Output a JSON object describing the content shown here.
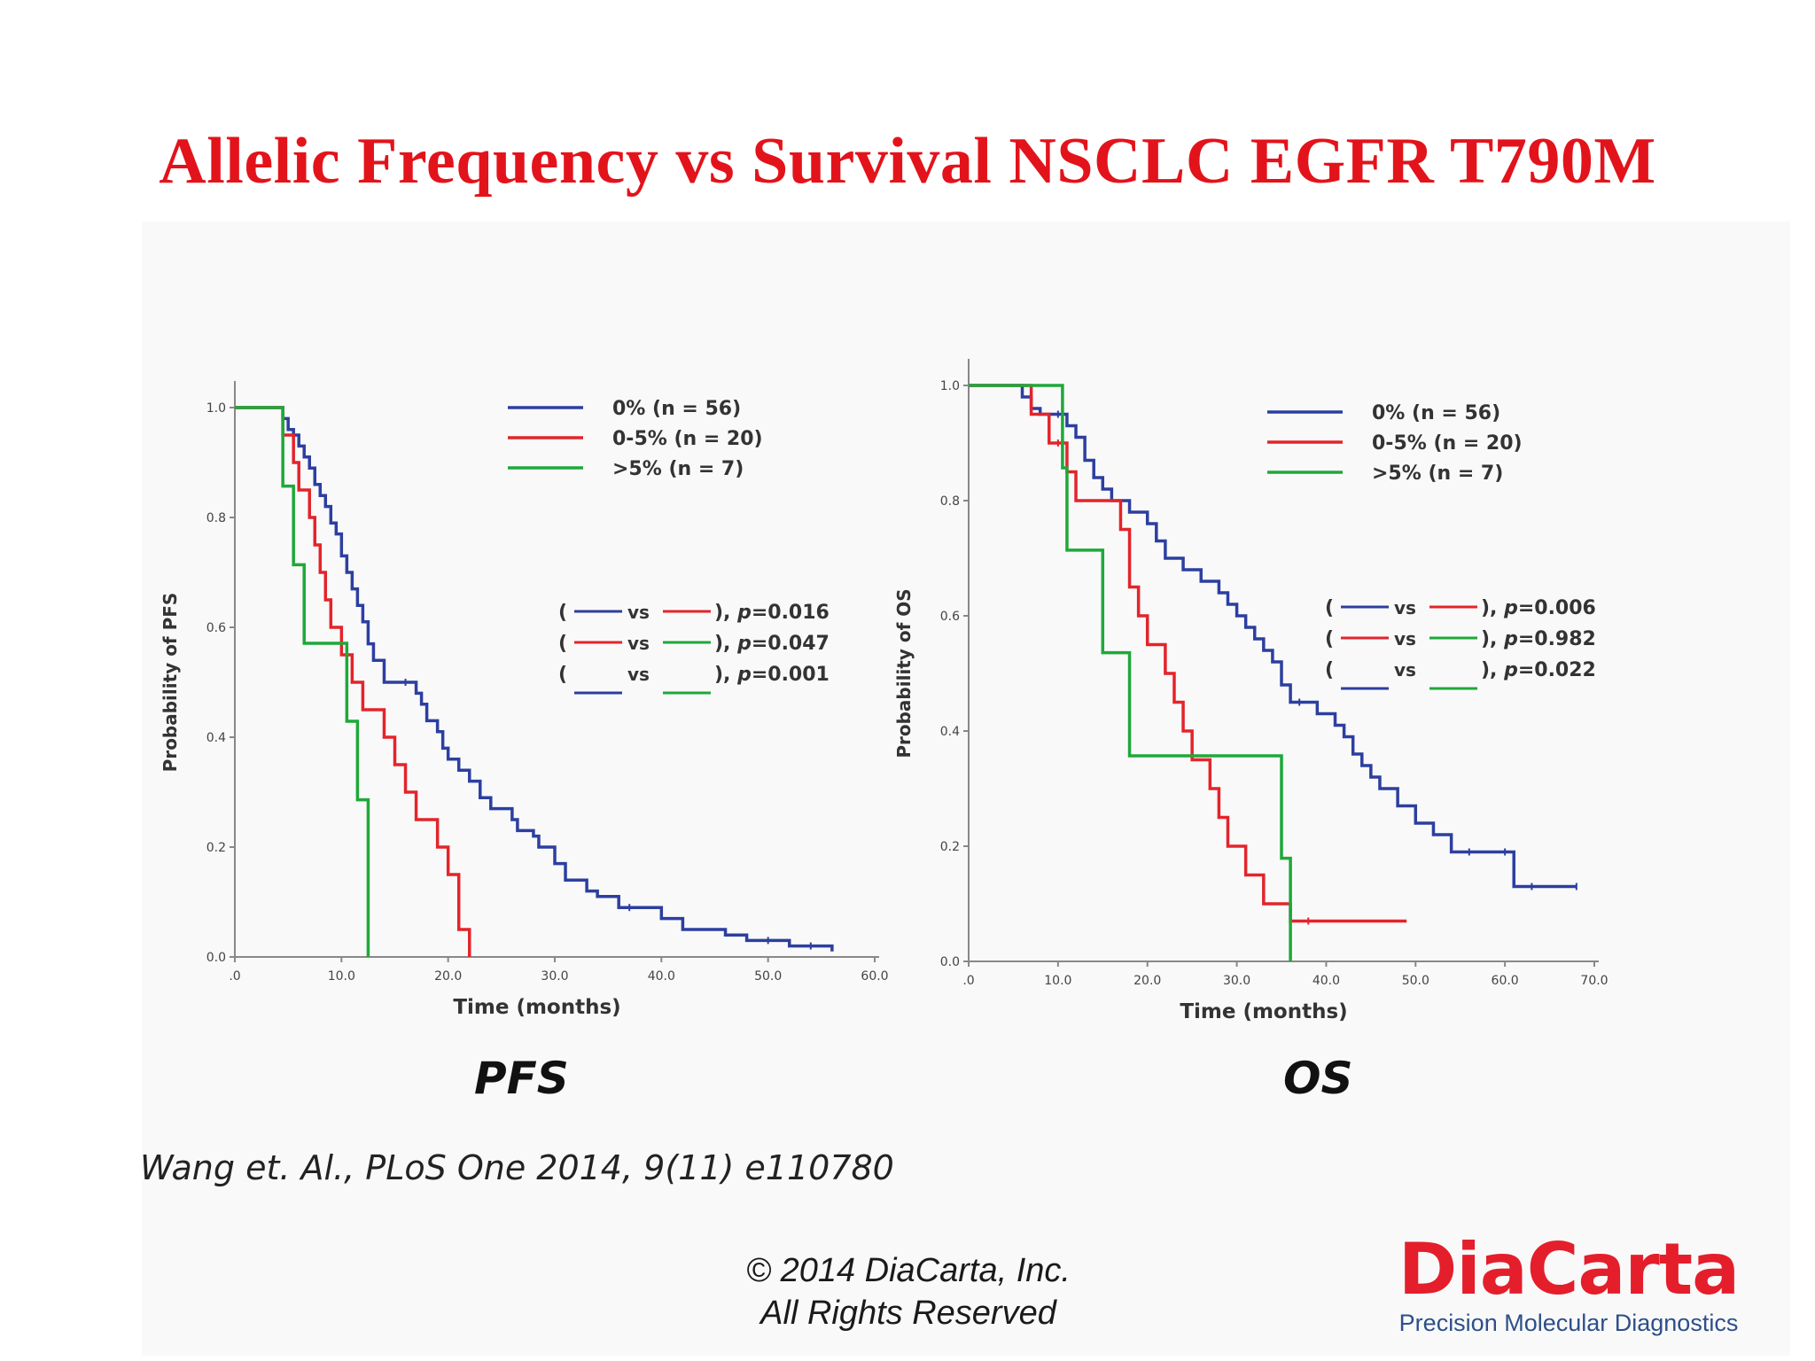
{
  "title": "Allelic Frequency vs Survival NSCLC EGFR T790M",
  "colors": {
    "title": "#e3131b",
    "blue": "#2c3fa0",
    "red": "#e3242b",
    "green": "#1fa83a",
    "logo_red": "#e41e2b",
    "logo_blue": "#2d4f8a"
  },
  "captions": {
    "pfs": "PFS",
    "os": "OS"
  },
  "citation": "Wang et. Al., PLoS One 2014, 9(11) e110780",
  "copyright": {
    "line1": "© 2014 DiaCarta, Inc.",
    "line2": "All Rights Reserved"
  },
  "logo": {
    "name": "DiaCarta",
    "tagline": "Precision Molecular Diagnostics"
  },
  "chart_data": [
    {
      "type": "line",
      "name": "PFS",
      "xlabel": "Time (months)",
      "ylabel": "Probability of PFS",
      "xlim": [
        0,
        60
      ],
      "ylim": [
        0,
        1
      ],
      "xticks": [
        ".0",
        "10.0",
        "20.0",
        "30.0",
        "40.0",
        "50.0",
        "60.0"
      ],
      "yticks": [
        "0.0",
        "0.2",
        "0.4",
        "0.6",
        "0.8",
        "1.0"
      ],
      "legend": [
        "0% (n = 56)",
        "0-5% (n = 20)",
        ">5% (n = 7)"
      ],
      "comparisons": [
        {
          "a": "blue",
          "b": "red",
          "p": "0.016"
        },
        {
          "a": "red",
          "b": "green",
          "p": "0.047"
        },
        {
          "a": "blue",
          "b": "green",
          "p": "0.001"
        }
      ],
      "series": [
        {
          "name": "0% (n = 56)",
          "color": "blue",
          "x": [
            0,
            4,
            4.5,
            5,
            5.5,
            6,
            6.5,
            7,
            7.5,
            8,
            8.5,
            9,
            9.5,
            10,
            10.5,
            11,
            11.5,
            12,
            12.5,
            13,
            14,
            15,
            16,
            17,
            17.5,
            18,
            19,
            19.5,
            20,
            21,
            22,
            23,
            24,
            26,
            26.5,
            28,
            28.5,
            30,
            31,
            33,
            34,
            36,
            37,
            40,
            42,
            44,
            46,
            48,
            50,
            52,
            54,
            56
          ],
          "y": [
            1,
            1,
            0.98,
            0.96,
            0.95,
            0.93,
            0.91,
            0.89,
            0.86,
            0.84,
            0.82,
            0.79,
            0.77,
            0.73,
            0.7,
            0.67,
            0.64,
            0.61,
            0.57,
            0.54,
            0.5,
            0.5,
            0.5,
            0.48,
            0.46,
            0.43,
            0.41,
            0.38,
            0.36,
            0.34,
            0.32,
            0.29,
            0.27,
            0.25,
            0.23,
            0.22,
            0.2,
            0.17,
            0.14,
            0.12,
            0.11,
            0.09,
            0.09,
            0.07,
            0.05,
            0.05,
            0.04,
            0.03,
            0.03,
            0.02,
            0.02,
            0.01
          ]
        },
        {
          "name": "0-5% (n = 20)",
          "color": "red",
          "x": [
            0,
            3.5,
            4.5,
            5.5,
            6,
            7,
            7.5,
            8,
            8.5,
            9,
            10,
            11,
            12,
            14,
            15,
            16,
            17,
            19,
            20,
            21,
            22
          ],
          "y": [
            1,
            1,
            0.95,
            0.9,
            0.85,
            0.8,
            0.75,
            0.7,
            0.65,
            0.6,
            0.55,
            0.5,
            0.45,
            0.4,
            0.35,
            0.3,
            0.25,
            0.2,
            0.15,
            0.05,
            0
          ]
        },
        {
          "name": ">5% (n = 7)",
          "color": "green",
          "x": [
            0,
            3.5,
            4.5,
            5.5,
            6.5,
            10.5,
            11.5,
            12.5
          ],
          "y": [
            1,
            1,
            0.857,
            0.714,
            0.571,
            0.429,
            0.286,
            0
          ]
        }
      ]
    },
    {
      "type": "line",
      "name": "OS",
      "xlabel": "Time (months)",
      "ylabel": "Probability of OS",
      "xlim": [
        0,
        70
      ],
      "ylim": [
        0,
        1
      ],
      "xticks": [
        ".0",
        "10.0",
        "20.0",
        "30.0",
        "40.0",
        "50.0",
        "60.0",
        "70.0"
      ],
      "yticks": [
        "0.0",
        "0.2",
        "0.4",
        "0.6",
        "0.8",
        "1.0"
      ],
      "legend": [
        "0% (n = 56)",
        "0-5% (n = 20)",
        ">5% (n = 7)"
      ],
      "comparisons": [
        {
          "a": "blue",
          "b": "red",
          "p": "0.006"
        },
        {
          "a": "red",
          "b": "green",
          "p": "0.982"
        },
        {
          "a": "blue",
          "b": "green",
          "p": "0.022"
        }
      ],
      "series": [
        {
          "name": "0% (n = 56)",
          "color": "blue",
          "x": [
            0,
            5,
            6,
            7,
            8,
            9,
            10,
            11,
            12,
            13,
            14,
            15,
            16,
            18,
            20,
            21,
            22,
            24,
            26,
            28,
            29,
            30,
            31,
            32,
            33,
            34,
            35,
            36,
            37,
            39,
            41,
            42,
            43,
            44,
            45,
            46,
            48,
            50,
            52,
            54,
            56,
            58,
            60,
            61,
            63,
            66,
            68
          ],
          "y": [
            1,
            1,
            0.98,
            0.96,
            0.95,
            0.95,
            0.95,
            0.93,
            0.91,
            0.87,
            0.84,
            0.82,
            0.8,
            0.78,
            0.76,
            0.73,
            0.7,
            0.68,
            0.66,
            0.64,
            0.62,
            0.6,
            0.58,
            0.56,
            0.54,
            0.52,
            0.48,
            0.45,
            0.45,
            0.43,
            0.41,
            0.39,
            0.36,
            0.34,
            0.32,
            0.3,
            0.27,
            0.24,
            0.22,
            0.19,
            0.19,
            0.19,
            0.19,
            0.13,
            0.13,
            0.13,
            0.13
          ]
        },
        {
          "name": "0-5% (n = 20)",
          "color": "red",
          "x": [
            0,
            5,
            7,
            9,
            10,
            11,
            12,
            13,
            17,
            18,
            19,
            20,
            22,
            23,
            24,
            25,
            27,
            28,
            29,
            31,
            33,
            36,
            38,
            49
          ],
          "y": [
            1,
            1,
            0.95,
            0.9,
            0.9,
            0.85,
            0.8,
            0.8,
            0.75,
            0.65,
            0.6,
            0.55,
            0.5,
            0.45,
            0.4,
            0.35,
            0.3,
            0.25,
            0.2,
            0.15,
            0.1,
            0.07,
            0.07,
            0.07
          ]
        },
        {
          "name": ">5% (n = 7)",
          "color": "green",
          "x": [
            0,
            10,
            10.5,
            11,
            15,
            18,
            35,
            36
          ],
          "y": [
            1,
            1,
            0.857,
            0.714,
            0.536,
            0.357,
            0.179,
            0
          ]
        }
      ]
    }
  ]
}
